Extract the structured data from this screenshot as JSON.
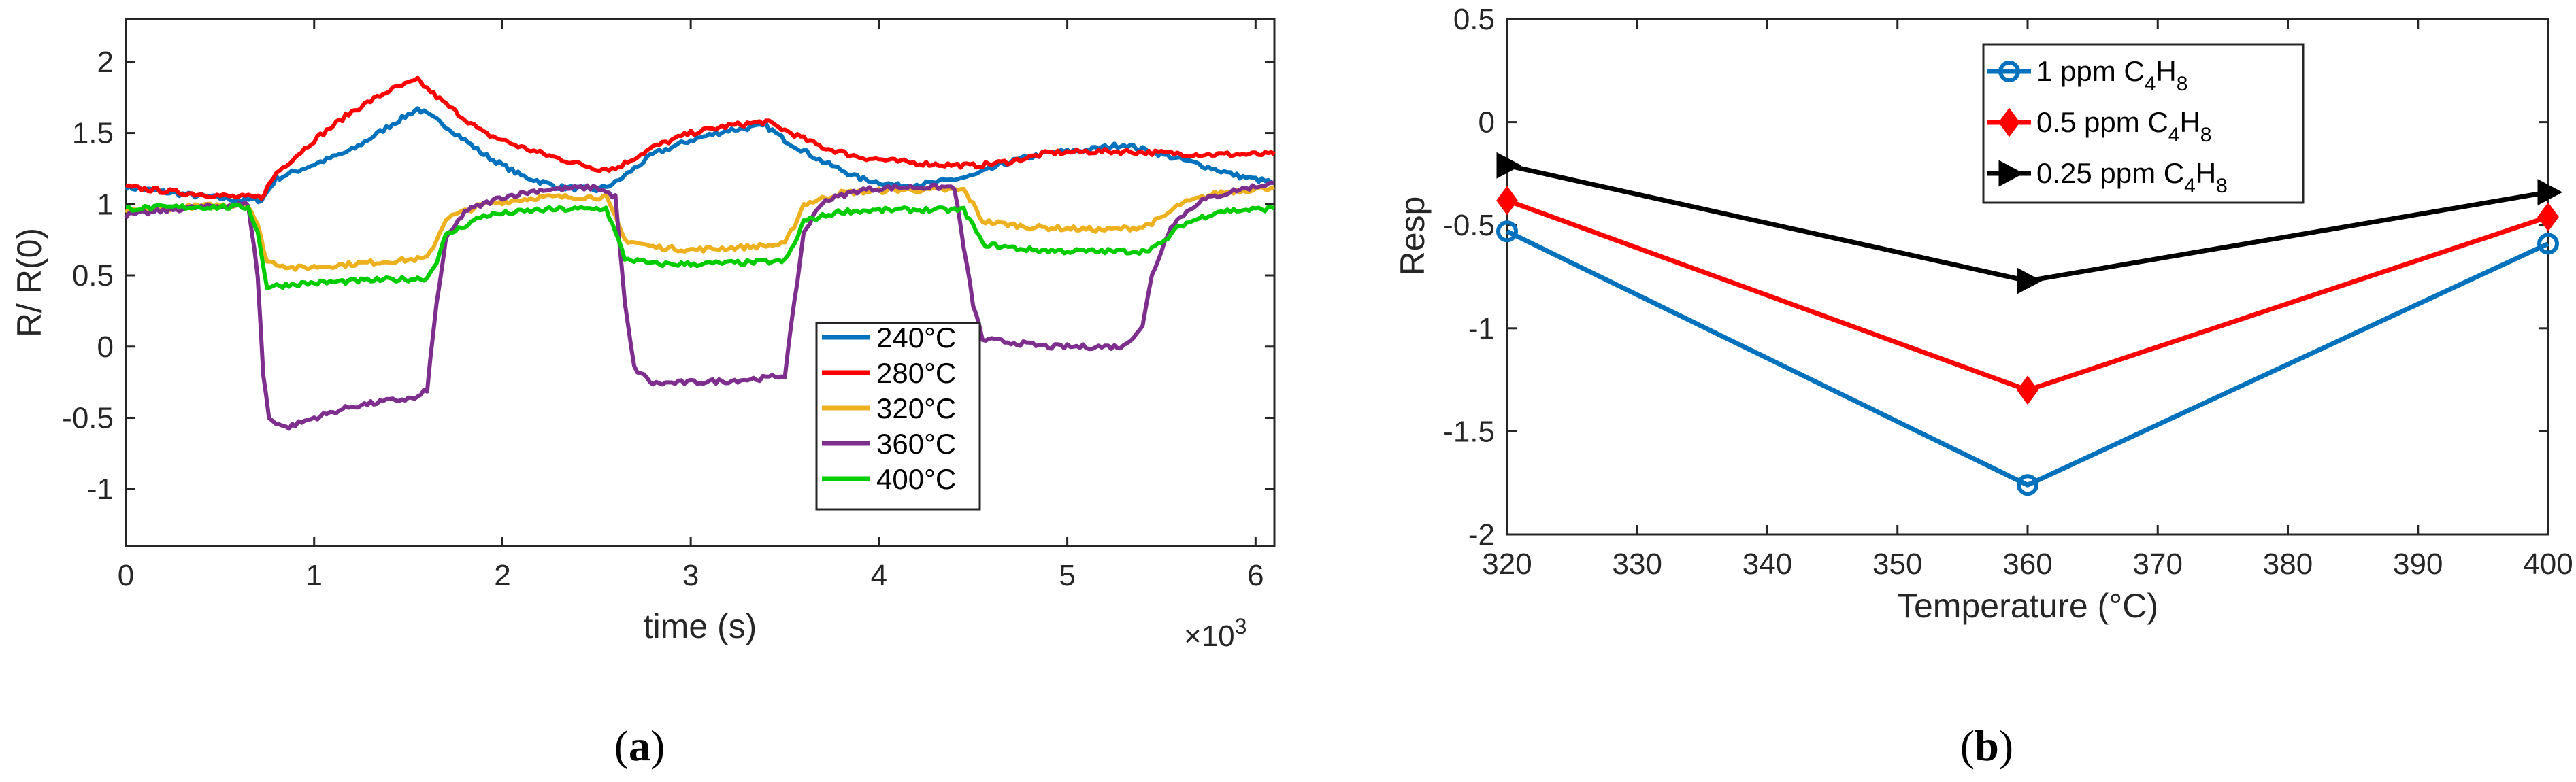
{
  "chart_data": [
    {
      "id": "a",
      "type": "line",
      "caption_letter": "a",
      "xlabel": "time (s)",
      "ylabel": "R/ R(0)",
      "x_multiplier_label": "×10",
      "x_multiplier_exp": "3",
      "xlim": [
        0,
        6.1
      ],
      "ylim": [
        -1.4,
        2.3
      ],
      "xticks": [
        0,
        1,
        2,
        3,
        4,
        5,
        6
      ],
      "yticks": [
        -1,
        -0.5,
        0,
        0.5,
        1,
        1.5,
        2
      ],
      "legend_position": "lower-right",
      "series": [
        {
          "name": "240°C",
          "color": "#0072BD",
          "x": [
            0,
            0.3,
            0.6,
            0.72,
            0.8,
            1.0,
            1.2,
            1.4,
            1.55,
            1.7,
            1.9,
            2.1,
            2.3,
            2.5,
            2.6,
            2.8,
            3.0,
            3.2,
            3.4,
            3.5,
            3.7,
            3.9,
            4.1,
            4.3,
            4.5,
            4.7,
            4.9,
            5.1,
            5.3,
            5.5,
            5.7,
            5.9,
            6.1
          ],
          "y": [
            1.12,
            1.07,
            1.03,
            1.03,
            1.18,
            1.28,
            1.38,
            1.55,
            1.67,
            1.55,
            1.35,
            1.2,
            1.12,
            1.1,
            1.15,
            1.35,
            1.45,
            1.52,
            1.55,
            1.45,
            1.3,
            1.18,
            1.13,
            1.15,
            1.2,
            1.3,
            1.36,
            1.38,
            1.42,
            1.35,
            1.28,
            1.2,
            1.15
          ]
        },
        {
          "name": "280°C",
          "color": "#FF0000",
          "x": [
            0,
            0.3,
            0.6,
            0.72,
            0.8,
            1.0,
            1.2,
            1.4,
            1.55,
            1.7,
            1.9,
            2.1,
            2.3,
            2.5,
            2.6,
            2.8,
            3.0,
            3.2,
            3.4,
            3.5,
            3.7,
            3.9,
            4.1,
            4.3,
            4.5,
            4.7,
            4.9,
            5.1,
            5.3,
            5.5,
            5.7,
            5.9,
            6.1
          ],
          "y": [
            1.12,
            1.08,
            1.05,
            1.05,
            1.22,
            1.45,
            1.65,
            1.8,
            1.87,
            1.7,
            1.5,
            1.4,
            1.32,
            1.25,
            1.25,
            1.4,
            1.5,
            1.55,
            1.58,
            1.52,
            1.4,
            1.33,
            1.3,
            1.28,
            1.27,
            1.3,
            1.36,
            1.37,
            1.37,
            1.36,
            1.35,
            1.35,
            1.35
          ]
        },
        {
          "name": "320°C",
          "color": "#EDB120",
          "x": [
            0,
            0.3,
            0.65,
            0.7,
            0.75,
            0.9,
            1.2,
            1.4,
            1.6,
            1.65,
            1.7,
            1.9,
            2.2,
            2.55,
            2.6,
            2.65,
            2.8,
            3.0,
            3.3,
            3.5,
            3.55,
            3.6,
            3.8,
            4.1,
            4.45,
            4.5,
            4.55,
            4.8,
            5.0,
            5.2,
            5.4,
            5.5,
            5.6,
            5.8,
            6.1
          ],
          "y": [
            0.95,
            0.98,
            1.0,
            0.85,
            0.6,
            0.55,
            0.58,
            0.6,
            0.62,
            0.75,
            0.9,
            1.0,
            1.05,
            1.05,
            0.9,
            0.75,
            0.7,
            0.68,
            0.7,
            0.72,
            0.85,
            1.0,
            1.08,
            1.1,
            1.1,
            1.0,
            0.88,
            0.84,
            0.83,
            0.82,
            0.84,
            0.9,
            1.0,
            1.08,
            1.12
          ]
        },
        {
          "name": "360°C",
          "color": "#7E2F8E",
          "x": [
            0,
            0.3,
            0.65,
            0.7,
            0.73,
            0.76,
            0.85,
            1.0,
            1.2,
            1.4,
            1.55,
            1.6,
            1.65,
            1.7,
            1.8,
            2.0,
            2.2,
            2.5,
            2.6,
            2.65,
            2.7,
            2.8,
            3.0,
            3.2,
            3.4,
            3.5,
            3.55,
            3.6,
            3.7,
            3.9,
            4.1,
            4.4,
            4.45,
            4.5,
            4.55,
            4.7,
            4.9,
            5.1,
            5.3,
            5.4,
            5.45,
            5.55,
            5.7,
            5.9,
            6.1
          ],
          "y": [
            0.92,
            0.97,
            1.0,
            0.5,
            -0.2,
            -0.5,
            -0.57,
            -0.5,
            -0.42,
            -0.38,
            -0.36,
            -0.3,
            0.3,
            0.75,
            0.95,
            1.05,
            1.1,
            1.12,
            1.05,
            0.3,
            -0.15,
            -0.26,
            -0.25,
            -0.24,
            -0.22,
            -0.2,
            0.3,
            0.8,
            1.02,
            1.1,
            1.12,
            1.12,
            0.7,
            0.3,
            0.05,
            0.03,
            0.0,
            0.0,
            0.0,
            0.15,
            0.5,
            0.85,
            1.02,
            1.1,
            1.15
          ]
        },
        {
          "name": "400°C",
          "color": "#00CC00",
          "x": [
            0,
            0.3,
            0.65,
            0.7,
            0.75,
            0.9,
            1.2,
            1.4,
            1.6,
            1.65,
            1.7,
            1.9,
            2.2,
            2.55,
            2.6,
            2.65,
            2.8,
            3.0,
            3.3,
            3.5,
            3.55,
            3.6,
            3.8,
            4.1,
            4.45,
            4.5,
            4.55,
            4.8,
            5.0,
            5.2,
            5.4,
            5.5,
            5.6,
            5.8,
            6.1
          ],
          "y": [
            0.97,
            0.98,
            0.98,
            0.8,
            0.42,
            0.44,
            0.46,
            0.47,
            0.48,
            0.6,
            0.78,
            0.92,
            0.96,
            0.97,
            0.8,
            0.62,
            0.58,
            0.58,
            0.59,
            0.6,
            0.72,
            0.88,
            0.95,
            0.96,
            0.96,
            0.85,
            0.72,
            0.68,
            0.67,
            0.67,
            0.67,
            0.72,
            0.85,
            0.95,
            0.97
          ]
        }
      ]
    },
    {
      "id": "b",
      "type": "line",
      "caption_letter": "b",
      "xlabel": "Temperature (°C)",
      "ylabel": "Resp",
      "xlim": [
        320,
        400
      ],
      "ylim": [
        -2,
        0.5
      ],
      "xticks": [
        320,
        330,
        340,
        350,
        360,
        370,
        380,
        390,
        400
      ],
      "yticks": [
        -2,
        -1.5,
        -1,
        -0.5,
        0,
        0.5
      ],
      "legend_position": "top-center",
      "series": [
        {
          "name": "1 ppm C4H8",
          "legend_prefix": "1 ppm C",
          "marker": "circle",
          "color": "#0072BD",
          "x": [
            320,
            360,
            400
          ],
          "y": [
            -0.53,
            -1.76,
            -0.59
          ]
        },
        {
          "name": "0.5 ppm C4H8",
          "legend_prefix": "0.5 ppm C",
          "marker": "diamond",
          "color": "#FF0000",
          "x": [
            320,
            360,
            400
          ],
          "y": [
            -0.38,
            -1.3,
            -0.46
          ]
        },
        {
          "name": "0.25 ppm C4H8",
          "legend_prefix": "0.25 ppm C",
          "marker": "triangle-right",
          "color": "#000000",
          "x": [
            320,
            360,
            400
          ],
          "y": [
            -0.21,
            -0.77,
            -0.34
          ]
        }
      ],
      "legend_sub1": "4",
      "legend_mid": "H",
      "legend_sub2": "8"
    }
  ]
}
